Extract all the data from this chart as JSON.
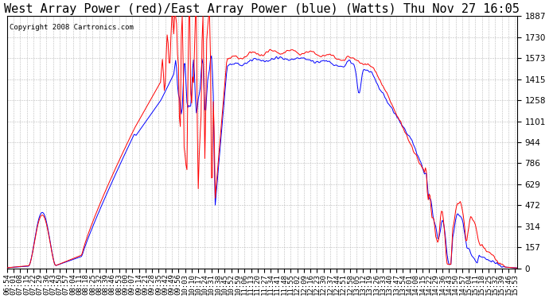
{
  "title": "West Array Power (red)/East Array Power (blue) (Watts) Thu Nov 27 16:05",
  "copyright": "Copyright 2008 Cartronics.com",
  "ymin": 0.0,
  "ymax": 1887.2,
  "yticks": [
    0.0,
    157.3,
    314.5,
    471.8,
    629.1,
    786.3,
    943.6,
    1100.9,
    1258.1,
    1415.4,
    1572.6,
    1729.9,
    1887.2
  ],
  "red_color": "#FF0000",
  "blue_color": "#0000FF",
  "bg_color": "#FFFFFF",
  "grid_color": "#BBBBBB",
  "title_fontsize": 11,
  "copyright_fontsize": 6.5,
  "tick_fontsize": 6.5,
  "ytick_fontsize": 7.5
}
